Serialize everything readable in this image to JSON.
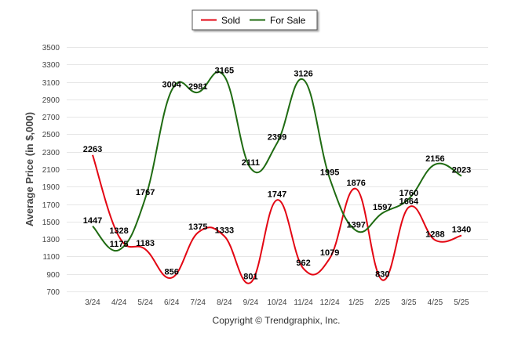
{
  "chart_data": {
    "type": "line",
    "title": "",
    "ylabel": "Average Price (in $,000)",
    "xlabel": "",
    "categories": [
      "3/24",
      "4/24",
      "5/24",
      "6/24",
      "7/24",
      "8/24",
      "9/24",
      "10/24",
      "11/24",
      "12/24",
      "1/25",
      "2/25",
      "3/25",
      "4/25",
      "5/25"
    ],
    "ylim": [
      700,
      3500
    ],
    "yticks": [
      700,
      900,
      1100,
      1300,
      1500,
      1700,
      1900,
      2100,
      2300,
      2500,
      2700,
      2900,
      3100,
      3300,
      3500
    ],
    "grid": true,
    "legend_position": "top-center",
    "series": [
      {
        "name": "Sold",
        "color": "#e30613",
        "values": [
          2263,
          1328,
          1183,
          856,
          1375,
          1333,
          801,
          1747,
          962,
          1079,
          1876,
          830,
          1664,
          1288,
          1340
        ]
      },
      {
        "name": "For Sale",
        "color": "#1f6b12",
        "values": [
          1447,
          1175,
          1767,
          3004,
          2981,
          3165,
          2111,
          2399,
          3126,
          1995,
          1397,
          1597,
          1760,
          2156,
          2023
        ]
      }
    ]
  },
  "footer": {
    "copyright": "Copyright © Trendgraphix, Inc."
  }
}
